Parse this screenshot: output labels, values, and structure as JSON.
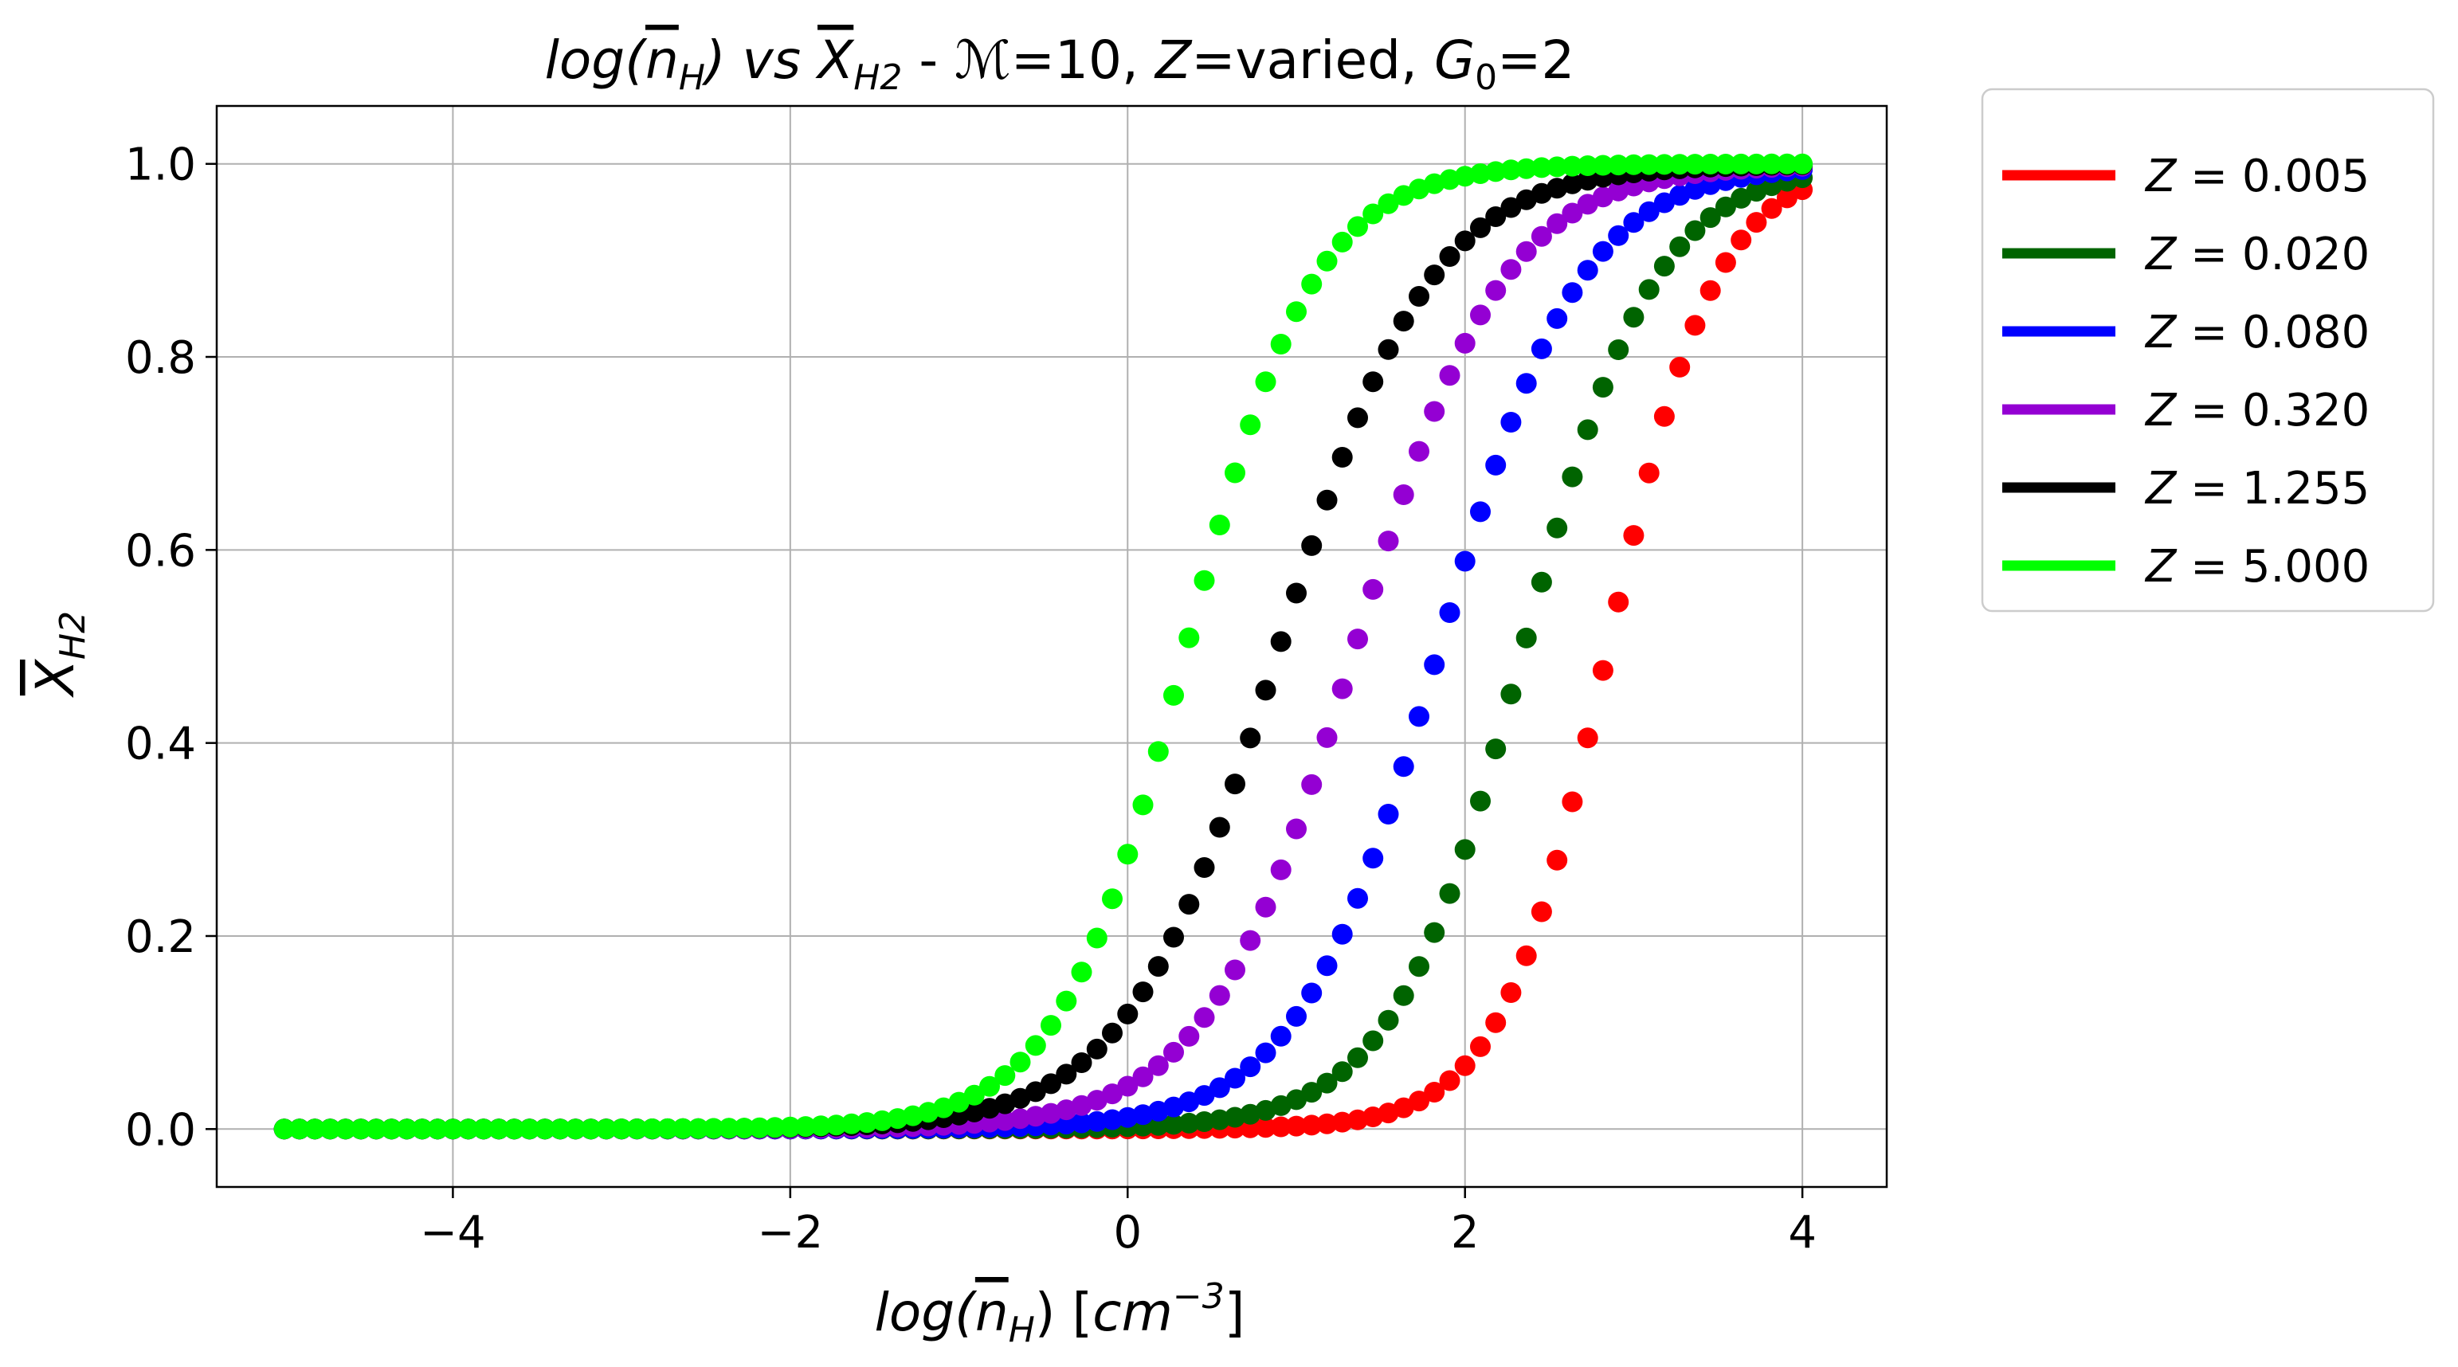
{
  "chart_data": {
    "type": "scatter",
    "title_parts": {
      "p1": "log(",
      "p2": "n",
      "p3": "H",
      "p4": ") vs ",
      "p5": "X",
      "p6": "H2",
      "p7": " - ",
      "p8": "ℳ",
      "p9": "=10, ",
      "p10": "Z",
      "p11": "=varied, ",
      "p12": "G",
      "p13": "0",
      "p14": "=2"
    },
    "xlabel_parts": {
      "p1": "log(",
      "p2": "n",
      "p3": "H",
      "p4": ") [",
      "p5": "cm",
      "p6": "−3",
      "p7": "]"
    },
    "ylabel_parts": {
      "p1": "X",
      "p2": "H2"
    },
    "xlim": [
      -5.4,
      4.5
    ],
    "ylim": [
      -0.06,
      1.06
    ],
    "x_ticks": [
      -4,
      -2,
      0,
      2,
      4
    ],
    "x_tick_labels": [
      "−4",
      "−2",
      "0",
      "2",
      "4"
    ],
    "y_ticks": [
      0.0,
      0.2,
      0.4,
      0.6,
      0.8,
      1.0
    ],
    "y_tick_labels": [
      "0.0",
      "0.2",
      "0.4",
      "0.6",
      "0.8",
      "1.0"
    ],
    "grid": true,
    "legend_position": "outside-top-right",
    "x": {
      "start": -5.0,
      "stop": 4.0,
      "count": 100
    },
    "series": [
      {
        "name": "Z = 0.005",
        "legend_var": "Z",
        "legend_value": " = 0.005",
        "color": "#ff0000",
        "x_half": 2.85,
        "width": 0.32
      },
      {
        "name": "Z = 0.020",
        "legend_var": "Z",
        "legend_value": " = 0.020",
        "color": "#006400",
        "x_half": 2.35,
        "width": 0.39
      },
      {
        "name": "Z = 0.080",
        "legend_var": "Z",
        "legend_value": " = 0.080",
        "color": "#0000ff",
        "x_half": 1.85,
        "width": 0.42
      },
      {
        "name": "Z = 0.320",
        "legend_var": "Z",
        "legend_value": " = 0.320",
        "color": "#9400d3",
        "x_half": 1.35,
        "width": 0.44
      },
      {
        "name": "Z = 1.255",
        "legend_var": "Z",
        "legend_value": " = 1.255",
        "color": "#000000",
        "x_half": 0.9,
        "width": 0.45
      },
      {
        "name": "Z = 5.000",
        "legend_var": "Z",
        "legend_value": " = 5.000",
        "color": "#00ff00",
        "x_half": 0.35,
        "width": 0.38
      }
    ]
  }
}
